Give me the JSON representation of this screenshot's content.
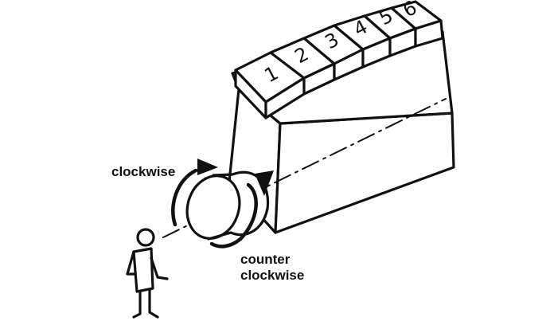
{
  "cylinders": [
    "1",
    "2",
    "3",
    "4",
    "5",
    "6"
  ],
  "labels": {
    "clockwise": "clockwise",
    "counter_line1": "counter",
    "counter_line2": "clockwise"
  },
  "colors": {
    "ink": "#111111",
    "background": "#ffffff"
  },
  "icons": {
    "observer": "person-figure",
    "rotation_cw": "arrow-clockwise",
    "rotation_ccw": "arrow-counter-clockwise"
  }
}
